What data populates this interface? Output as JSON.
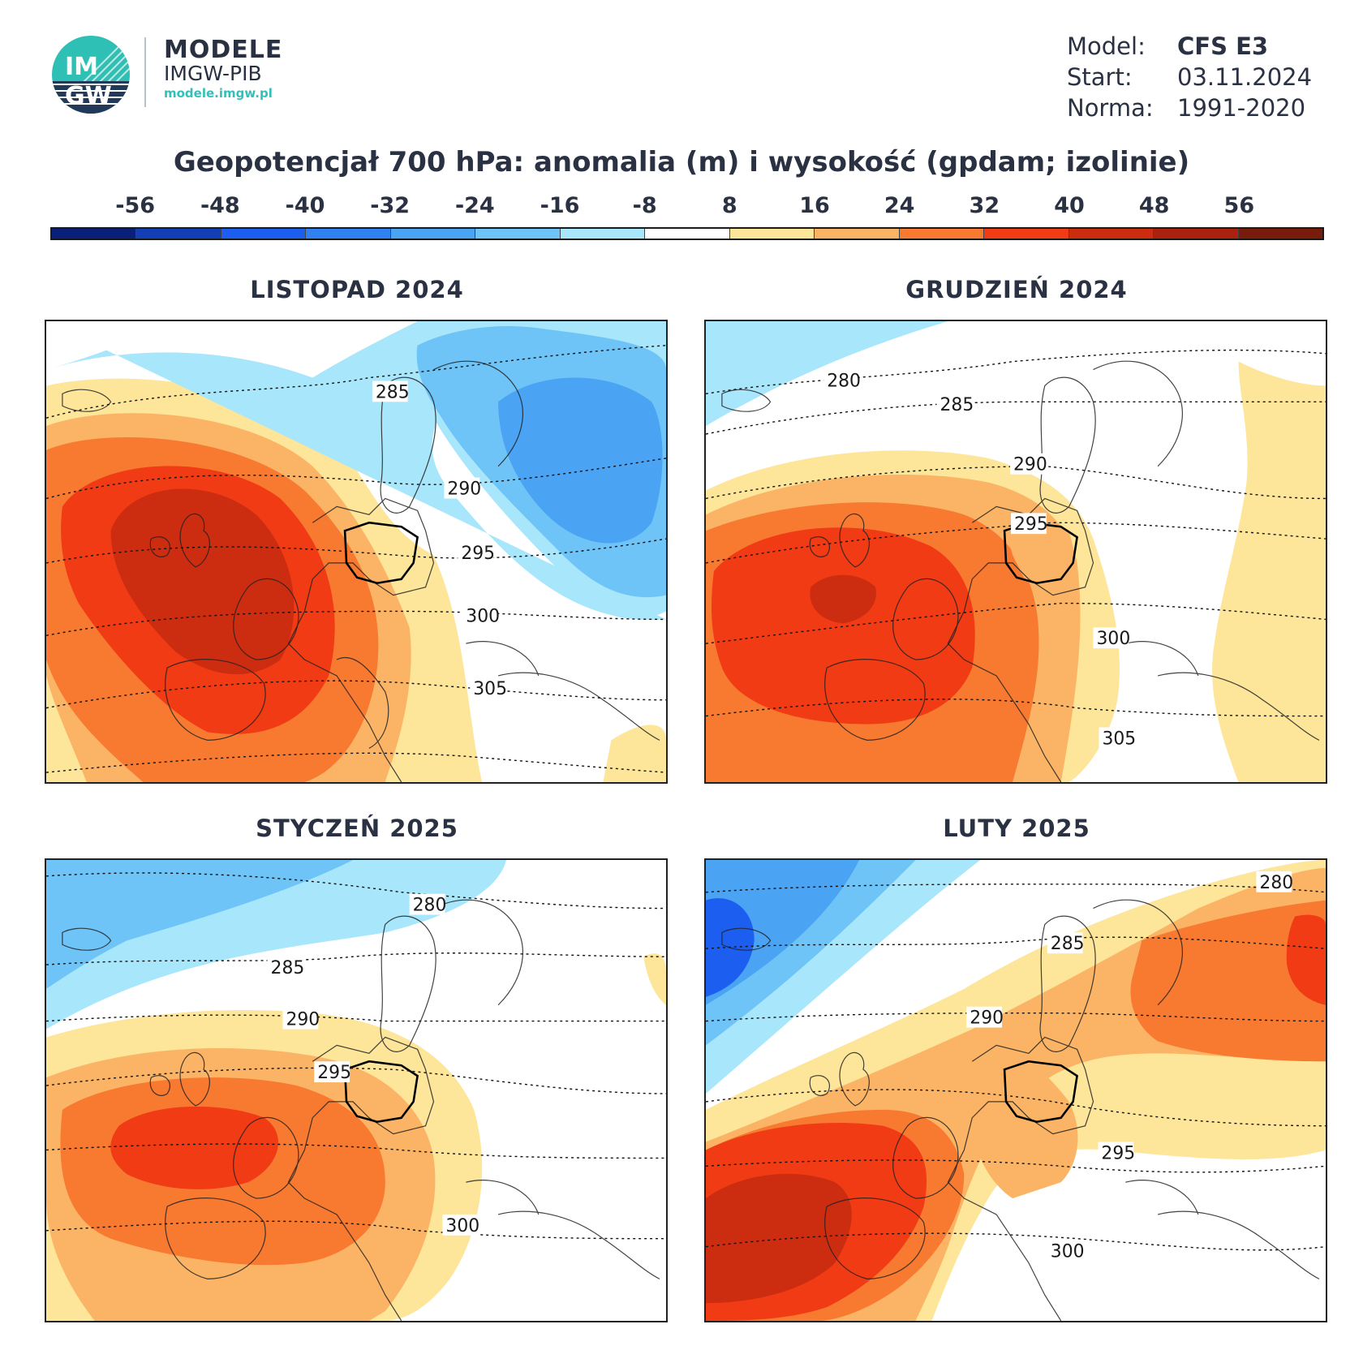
{
  "header": {
    "logo_text_top": "IM",
    "logo_text_bottom": "GW",
    "brand_title": "MODELE",
    "brand_sub": "IMGW-PIB",
    "brand_url": "modele.imgw.pl"
  },
  "meta": {
    "model_label": "Model:",
    "model_value": "CFS E3",
    "start_label": "Start:",
    "start_value": "03.11.2024",
    "norm_label": "Norma:",
    "norm_value": "1991-2020"
  },
  "title": "Geopotencjał 700 hPa: anomalia (m) i wysokość (gpdam; izolinie)",
  "legend": {
    "labels": [
      "-56",
      "-48",
      "-40",
      "-32",
      "-24",
      "-16",
      "-8",
      "8",
      "16",
      "24",
      "32",
      "40",
      "48",
      "56"
    ],
    "colors": [
      "#0a1f7a",
      "#123fb4",
      "#1c5ff0",
      "#2f82f0",
      "#4aa3f3",
      "#6ec3f7",
      "#a8e6fb",
      "#ffffff",
      "#fde59a",
      "#fbb466",
      "#f87a30",
      "#f03b14",
      "#cc2c10",
      "#a8220e",
      "#7a1c0c"
    ]
  },
  "panels": [
    {
      "title": "LISTOPAD 2024",
      "isolines": [
        "285",
        "290",
        "295",
        "300",
        "305"
      ]
    },
    {
      "title": "GRUDZIEŃ 2024",
      "isolines": [
        "280",
        "285",
        "290",
        "295",
        "300",
        "305"
      ]
    },
    {
      "title": "STYCZEŃ 2025",
      "isolines": [
        "280",
        "285",
        "290",
        "295",
        "300"
      ]
    },
    {
      "title": "LUTY 2025",
      "isolines": [
        "280",
        "285",
        "290",
        "295",
        "300"
      ]
    }
  ]
}
